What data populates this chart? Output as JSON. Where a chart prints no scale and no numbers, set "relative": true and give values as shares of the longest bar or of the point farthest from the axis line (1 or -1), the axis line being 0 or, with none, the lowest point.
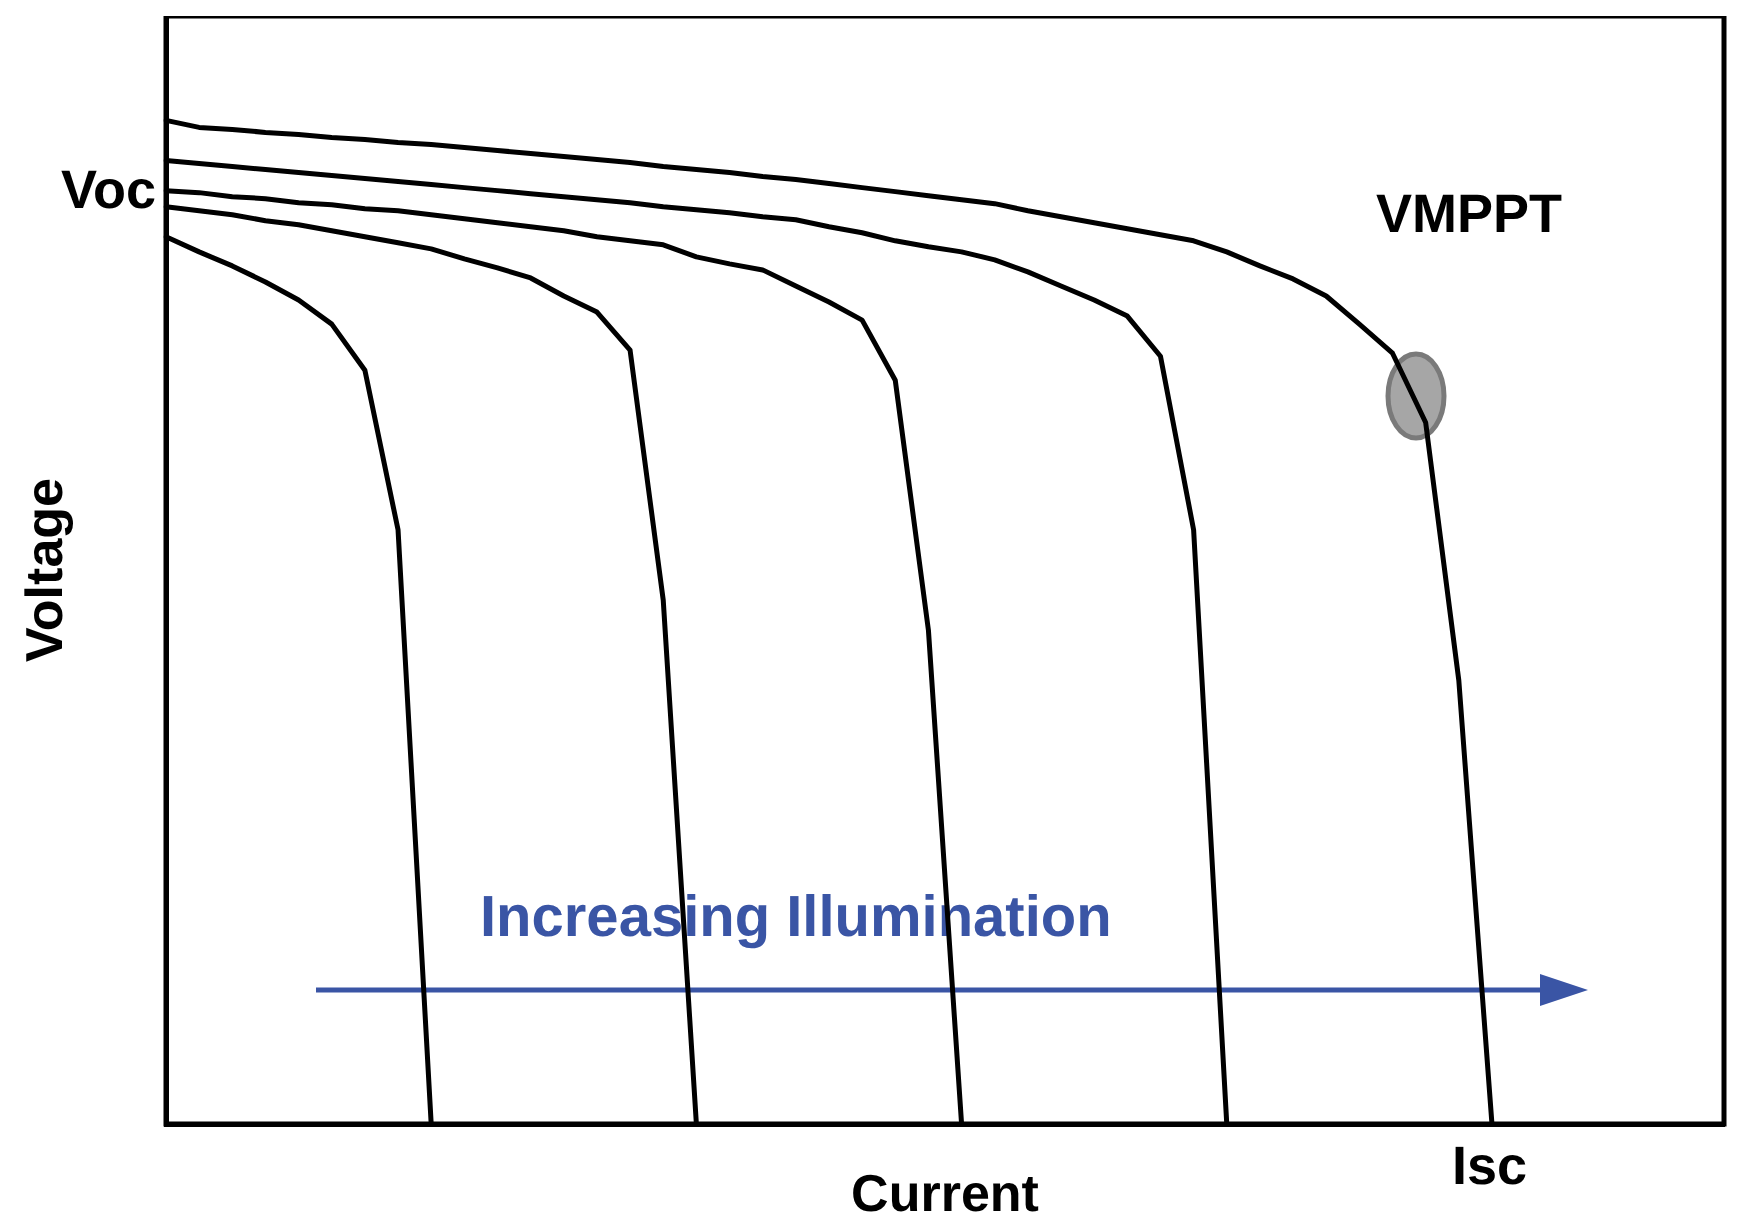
{
  "chart_data": {
    "type": "line",
    "relative": true,
    "xlabel": "Current",
    "ylabel": "Voltage",
    "grid": false,
    "legend": false,
    "marker": "none",
    "line_style": "solid",
    "categories": [
      null,
      null,
      null,
      null,
      null,
      null,
      null,
      null,
      null,
      null,
      null,
      null,
      null,
      null,
      null,
      null,
      null,
      null,
      null,
      null,
      null,
      null,
      null,
      null,
      null,
      null,
      null,
      null,
      null,
      null,
      null,
      null,
      null,
      null,
      null,
      null,
      null,
      null,
      null,
      null,
      null,
      null,
      null,
      null,
      null,
      null,
      null,
      null
    ],
    "series": [
      {
        "color": "#000000",
        "values": [
          0.884,
          0.869,
          0.855,
          0.839,
          0.821,
          0.797,
          0.751,
          0.592,
          0,
          null,
          null,
          null,
          null,
          null,
          null,
          null,
          null,
          null,
          null,
          null,
          null,
          null,
          null,
          null,
          null,
          null,
          null,
          null,
          null,
          null,
          null,
          null,
          null,
          null,
          null,
          null,
          null,
          null,
          null,
          null,
          null,
          null,
          null,
          null,
          null,
          null,
          null,
          null
        ]
      },
      {
        "color": "#000000",
        "values": [
          0.914,
          0.91,
          0.906,
          0.9,
          0.896,
          0.89,
          0.884,
          0.878,
          0.872,
          0.862,
          0.853,
          0.843,
          0.825,
          0.809,
          0.771,
          0.522,
          0,
          null,
          null,
          null,
          null,
          null,
          null,
          null,
          null,
          null,
          null,
          null,
          null,
          null,
          null,
          null,
          null,
          null,
          null,
          null,
          null,
          null,
          null,
          null,
          null,
          null,
          null,
          null,
          null,
          null,
          null,
          null
        ]
      },
      {
        "color": "#000000",
        "values": [
          0.93,
          0.928,
          0.924,
          0.922,
          0.918,
          0.916,
          0.912,
          0.91,
          0.906,
          0.902,
          0.898,
          0.894,
          0.89,
          0.884,
          0.88,
          0.876,
          0.864,
          0.857,
          0.851,
          0.835,
          0.819,
          0.801,
          0.741,
          0.492,
          0,
          null,
          null,
          null,
          null,
          null,
          null,
          null,
          null,
          null,
          null,
          null,
          null,
          null,
          null,
          null,
          null,
          null,
          null,
          null,
          null,
          null,
          null,
          null
        ]
      },
      {
        "color": "#000000",
        "values": [
          0.96,
          0.957,
          0.954,
          0.951,
          0.948,
          0.945,
          0.942,
          0.939,
          0.936,
          0.933,
          0.93,
          0.927,
          0.924,
          0.921,
          0.918,
          0.914,
          0.911,
          0.908,
          0.904,
          0.901,
          0.894,
          0.888,
          0.88,
          0.874,
          0.869,
          0.861,
          0.849,
          0.835,
          0.821,
          0.805,
          0.765,
          0.592,
          0,
          null,
          null,
          null,
          null,
          null,
          null,
          null,
          null,
          null,
          null,
          null,
          null,
          null,
          null,
          null
        ]
      },
      {
        "color": "#000000",
        "values": [
          1,
          0.993,
          0.991,
          0.988,
          0.986,
          0.983,
          0.981,
          0.978,
          0.976,
          0.973,
          0.97,
          0.967,
          0.964,
          0.961,
          0.958,
          0.954,
          0.951,
          0.948,
          0.944,
          0.941,
          0.937,
          0.933,
          0.929,
          0.925,
          0.921,
          0.917,
          0.91,
          0.904,
          0.898,
          0.892,
          0.886,
          0.88,
          0.869,
          0.855,
          0.842,
          0.825,
          0.797,
          0.768,
          0.699,
          0.442,
          0,
          null,
          null,
          null,
          null,
          null,
          null,
          null
        ]
      }
    ],
    "annotations": [
      "Voc",
      "Isc",
      "VMPPT",
      "Increasing Illumination"
    ]
  }
}
